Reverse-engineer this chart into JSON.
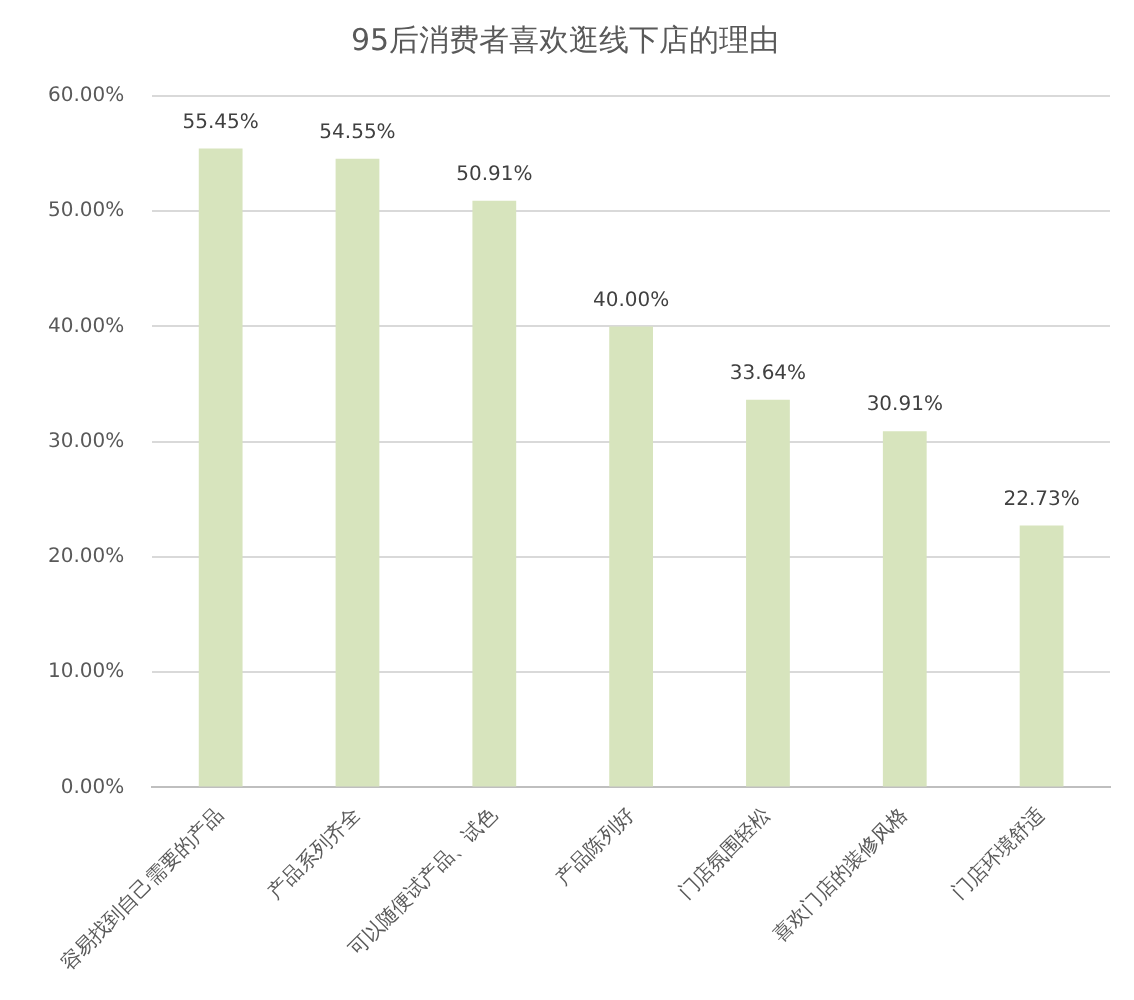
{
  "chart_data": {
    "type": "bar",
    "title": "95后消费者喜欢逛线下店的理由",
    "categories": [
      "容易找到自己需要的产品",
      "产品系列齐全",
      "可以随便试产品、试色",
      "产品陈列好",
      "门店氛围轻松",
      "喜欢门店的装修风格",
      "门店环境舒适"
    ],
    "values": [
      55.45,
      54.55,
      50.91,
      40.0,
      33.64,
      30.91,
      22.73
    ],
    "value_labels": [
      "55.45%",
      "54.55%",
      "50.91%",
      "40.00%",
      "33.64%",
      "30.91%",
      "22.73%"
    ],
    "color": "#d7e4bd",
    "ylim": [
      0,
      60
    ],
    "yticks": [
      {
        "value": 0,
        "label": "0.00%"
      },
      {
        "value": 10,
        "label": "10.00%"
      },
      {
        "value": 20,
        "label": "20.00%"
      },
      {
        "value": 30,
        "label": "30.00%"
      },
      {
        "value": 40,
        "label": "40.00%"
      },
      {
        "value": 50,
        "label": "50.00%"
      },
      {
        "value": 60,
        "label": "60.00%"
      }
    ],
    "grid": "y"
  }
}
